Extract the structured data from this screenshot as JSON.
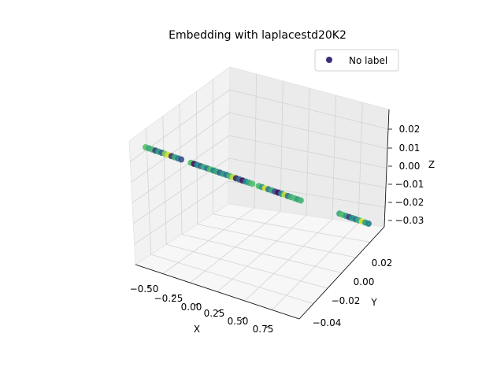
{
  "chart_data": {
    "type": "scatter",
    "projection": "3d",
    "title": "Embedding with laplacestd20K2",
    "xlabel": "X",
    "ylabel": "Y",
    "zlabel": "Z",
    "x_ticks": [
      "−0.50",
      "−0.25",
      "0.00",
      "0.25",
      "0.50",
      "0.75"
    ],
    "y_ticks": [
      "−0.04",
      "−0.02",
      "0.00",
      "0.02"
    ],
    "z_ticks": [
      "0.02",
      "0.01",
      "0.00",
      "−0.01",
      "−0.02",
      "−0.03"
    ],
    "legend": {
      "placement": "top-right",
      "entries": [
        "No label"
      ],
      "marker_color": "#3b2f7a"
    },
    "grid": true,
    "colormap": "viridis",
    "series": [
      {
        "name": "No label",
        "points": [
          {
            "x": -0.6,
            "y": 0.0,
            "z": 0.0,
            "c": 0.72
          },
          {
            "x": -0.58,
            "y": 0.0,
            "z": 0.0,
            "c": 0.6
          },
          {
            "x": -0.56,
            "y": 0.0,
            "z": 0.0,
            "c": 0.66
          },
          {
            "x": -0.54,
            "y": 0.0,
            "z": 0.0,
            "c": 0.2
          },
          {
            "x": -0.52,
            "y": 0.0,
            "z": 0.0,
            "c": 0.55
          },
          {
            "x": -0.5,
            "y": 0.0,
            "z": 0.0,
            "c": 0.3
          },
          {
            "x": -0.48,
            "y": 0.0,
            "z": 0.0,
            "c": 0.8
          },
          {
            "x": -0.46,
            "y": 0.0,
            "z": 0.0,
            "c": 0.95
          },
          {
            "x": -0.44,
            "y": 0.0,
            "z": 0.0,
            "c": 0.15
          },
          {
            "x": -0.42,
            "y": 0.0,
            "z": 0.0,
            "c": 0.6
          },
          {
            "x": -0.4,
            "y": 0.0,
            "z": 0.0,
            "c": 0.45
          },
          {
            "x": -0.38,
            "y": 0.0,
            "z": 0.0,
            "c": 0.25
          },
          {
            "x": -0.32,
            "y": 0.0,
            "z": 0.0,
            "c": 0.7
          },
          {
            "x": -0.3,
            "y": 0.0,
            "z": 0.0,
            "c": 0.05
          },
          {
            "x": -0.28,
            "y": 0.0,
            "z": 0.0,
            "c": 0.5
          },
          {
            "x": -0.26,
            "y": 0.0,
            "z": 0.0,
            "c": 0.35
          },
          {
            "x": -0.24,
            "y": 0.0,
            "z": 0.0,
            "c": 0.62
          },
          {
            "x": -0.22,
            "y": 0.0,
            "z": 0.0,
            "c": 0.4
          },
          {
            "x": -0.2,
            "y": 0.0,
            "z": 0.0,
            "c": 0.7
          },
          {
            "x": -0.18,
            "y": 0.0,
            "z": 0.0,
            "c": 0.45
          },
          {
            "x": -0.16,
            "y": 0.0,
            "z": 0.0,
            "c": 0.6
          },
          {
            "x": -0.14,
            "y": 0.0,
            "z": 0.0,
            "c": 0.3
          },
          {
            "x": -0.12,
            "y": 0.0,
            "z": 0.0,
            "c": 0.55
          },
          {
            "x": -0.1,
            "y": 0.0,
            "z": 0.0,
            "c": 0.4
          },
          {
            "x": -0.08,
            "y": 0.0,
            "z": 0.0,
            "c": 0.65
          },
          {
            "x": -0.06,
            "y": 0.0,
            "z": 0.0,
            "c": 0.9
          },
          {
            "x": -0.04,
            "y": 0.0,
            "z": 0.0,
            "c": 0.1
          },
          {
            "x": -0.02,
            "y": 0.0,
            "z": 0.0,
            "c": 0.35
          },
          {
            "x": 0.0,
            "y": 0.0,
            "z": 0.0,
            "c": 0.05
          },
          {
            "x": 0.02,
            "y": 0.0,
            "z": 0.0,
            "c": 0.45
          },
          {
            "x": 0.04,
            "y": 0.0,
            "z": 0.0,
            "c": 0.6
          },
          {
            "x": 0.06,
            "y": 0.0,
            "z": 0.0,
            "c": 0.7
          },
          {
            "x": 0.1,
            "y": 0.0,
            "z": 0.0,
            "c": 0.68
          },
          {
            "x": 0.12,
            "y": 0.0,
            "z": 0.0,
            "c": 0.55
          },
          {
            "x": 0.14,
            "y": 0.0,
            "z": 0.0,
            "c": 0.95
          },
          {
            "x": 0.16,
            "y": 0.0,
            "z": 0.0,
            "c": 0.4
          },
          {
            "x": 0.18,
            "y": 0.0,
            "z": 0.0,
            "c": 0.62
          },
          {
            "x": 0.2,
            "y": 0.0,
            "z": 0.0,
            "c": 0.25
          },
          {
            "x": 0.22,
            "y": 0.0,
            "z": 0.0,
            "c": 0.05
          },
          {
            "x": 0.24,
            "y": 0.0,
            "z": 0.0,
            "c": 0.5
          },
          {
            "x": 0.26,
            "y": 0.0,
            "z": 0.0,
            "c": 0.9
          },
          {
            "x": 0.28,
            "y": 0.0,
            "z": 0.0,
            "c": 0.38
          },
          {
            "x": 0.3,
            "y": 0.0,
            "z": 0.0,
            "c": 0.62
          },
          {
            "x": 0.32,
            "y": 0.0,
            "z": 0.0,
            "c": 0.7
          },
          {
            "x": 0.34,
            "y": 0.0,
            "z": 0.0,
            "c": 0.55
          },
          {
            "x": 0.36,
            "y": 0.0,
            "z": 0.0,
            "c": 0.65
          },
          {
            "x": 0.6,
            "y": 0.0,
            "z": 0.0,
            "c": 0.6
          },
          {
            "x": 0.62,
            "y": 0.0,
            "z": 0.0,
            "c": 0.7
          },
          {
            "x": 0.64,
            "y": 0.0,
            "z": 0.0,
            "c": 0.55
          },
          {
            "x": 0.66,
            "y": 0.0,
            "z": 0.0,
            "c": 0.2
          },
          {
            "x": 0.68,
            "y": 0.0,
            "z": 0.0,
            "c": 0.5
          },
          {
            "x": 0.7,
            "y": 0.0,
            "z": 0.0,
            "c": 0.4
          },
          {
            "x": 0.72,
            "y": 0.0,
            "z": 0.0,
            "c": 0.62
          },
          {
            "x": 0.74,
            "y": 0.0,
            "z": 0.0,
            "c": 0.95
          },
          {
            "x": 0.76,
            "y": 0.0,
            "z": 0.0,
            "c": 0.55
          },
          {
            "x": 0.78,
            "y": 0.0,
            "z": 0.0,
            "c": 0.45
          }
        ]
      }
    ]
  }
}
